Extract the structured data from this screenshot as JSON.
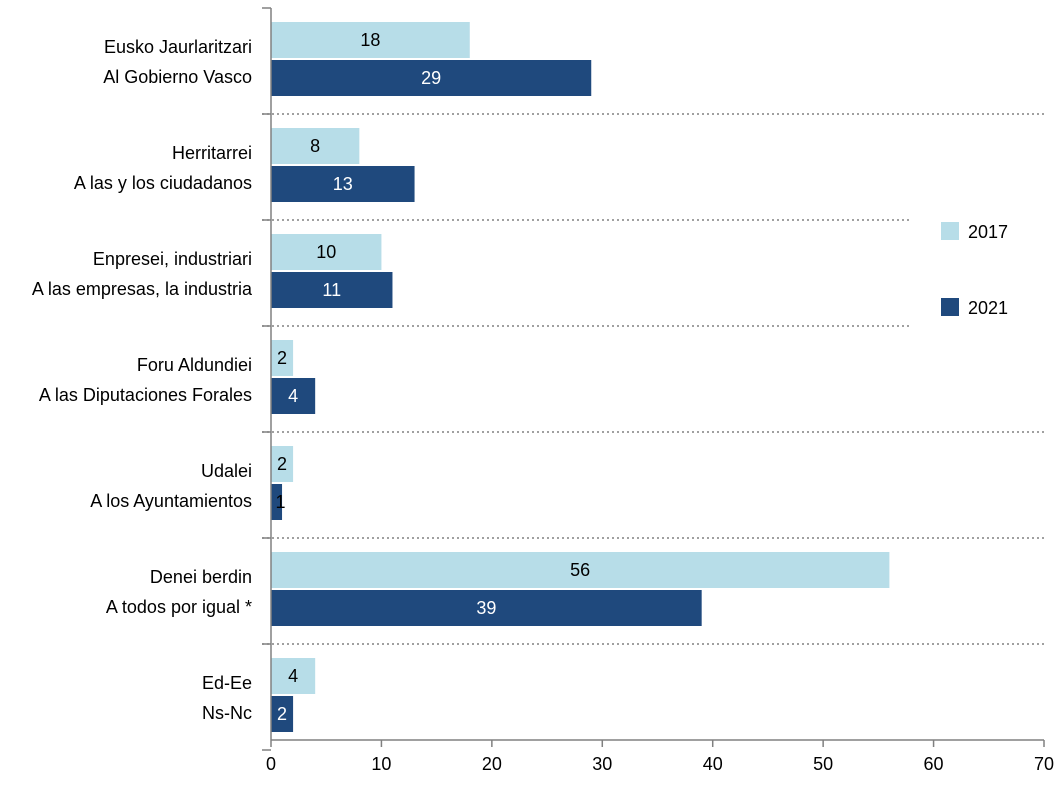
{
  "chart_data": {
    "type": "bar",
    "orientation": "horizontal",
    "categories": [
      {
        "line1": "Eusko Jaurlaritzari",
        "line2": "Al Gobierno Vasco"
      },
      {
        "line1": "Herritarrei",
        "line2": "A las y los ciudadanos"
      },
      {
        "line1": "Enpresei, industriari",
        "line2": "A las empresas, la industria"
      },
      {
        "line1": "Foru Aldundiei",
        "line2": "A las Diputaciones Forales"
      },
      {
        "line1": "Udalei",
        "line2": "A los Ayuntamientos"
      },
      {
        "line1": "Denei berdin",
        "line2": "A todos por igual *"
      },
      {
        "line1": "Ed-Ee",
        "line2": "Ns-Nc"
      }
    ],
    "series": [
      {
        "name": "2017",
        "color": "#b7dde8",
        "label_color": "#000000",
        "values": [
          18,
          8,
          10,
          2,
          2,
          56,
          4
        ]
      },
      {
        "name": "2021",
        "color": "#1f497d",
        "label_color": "#ffffff",
        "values": [
          29,
          13,
          11,
          4,
          1,
          39,
          2
        ]
      }
    ],
    "xlim": [
      0,
      70
    ],
    "xticks": [
      0,
      10,
      20,
      30,
      40,
      50,
      60,
      70
    ],
    "title": "",
    "xlabel": "",
    "ylabel": "",
    "legend_position": "right",
    "grid": "dotted separators between categories"
  }
}
